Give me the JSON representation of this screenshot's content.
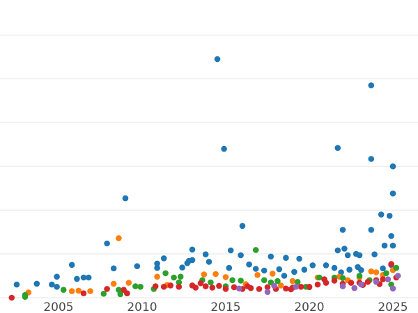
{
  "chart_data": {
    "type": "scatter",
    "title": "",
    "xlabel": "",
    "ylabel": "",
    "xlim": [
      2001.5,
      2026.5
    ],
    "ylim": [
      0,
      68
    ],
    "x_ticks": [
      {
        "value": 2005,
        "label": "2005"
      },
      {
        "value": 2010,
        "label": "2010"
      },
      {
        "value": 2015,
        "label": "2015"
      },
      {
        "value": 2020,
        "label": "2020"
      },
      {
        "value": 2025,
        "label": "2025"
      }
    ],
    "y_gridlines": [
      0,
      10,
      20,
      30,
      40,
      50,
      60
    ],
    "y_tick_labels_shown": false,
    "grid": "horizontal",
    "legend": "none",
    "colors": {
      "blue": "#1f77b4",
      "orange": "#ff7f0e",
      "green": "#2ca02c",
      "red": "#d62728",
      "purple": "#9467bd",
      "grid": "#e6e6e6",
      "tick_text": "#4a4a4a"
    },
    "series": [
      {
        "color": "blue",
        "points": [
          [
            2002.5,
            3.0
          ],
          [
            2003.7,
            3.2
          ],
          [
            2004.6,
            3.0
          ],
          [
            2004.9,
            2.5
          ],
          [
            2004.9,
            4.8
          ],
          [
            2005.8,
            7.5
          ],
          [
            2006.1,
            4.3
          ],
          [
            2006.5,
            4.6
          ],
          [
            2006.8,
            4.6
          ],
          [
            2007.9,
            12.4
          ],
          [
            2008.3,
            6.7
          ],
          [
            2009.0,
            22.7
          ],
          [
            2009.7,
            7.2
          ],
          [
            2010.9,
            6.8
          ],
          [
            2010.9,
            7.8
          ],
          [
            2011.3,
            9.0
          ],
          [
            2012.4,
            6.9
          ],
          [
            2012.7,
            7.9
          ],
          [
            2012.8,
            8.4
          ],
          [
            2013.0,
            11.0
          ],
          [
            2013.0,
            8.6
          ],
          [
            2013.8,
            9.9
          ],
          [
            2014.0,
            8.2
          ],
          [
            2014.5,
            54.5
          ],
          [
            2015.2,
            6.8
          ],
          [
            2014.9,
            34.0
          ],
          [
            2015.3,
            10.8
          ],
          [
            2015.9,
            9.7
          ],
          [
            2016.0,
            16.4
          ],
          [
            2016.4,
            7.6
          ],
          [
            2016.8,
            6.6
          ],
          [
            2017.7,
            9.4
          ],
          [
            2018.2,
            6.5
          ],
          [
            2018.6,
            9.1
          ],
          [
            2019.1,
            5.9
          ],
          [
            2019.4,
            8.9
          ],
          [
            2019.7,
            6.4
          ],
          [
            2020.2,
            7.4
          ],
          [
            2021.0,
            7.4
          ],
          [
            2021.5,
            6.8
          ],
          [
            2021.7,
            34.2
          ],
          [
            2021.7,
            10.8
          ],
          [
            2022.0,
            15.5
          ],
          [
            2022.1,
            11.2
          ],
          [
            2022.3,
            9.7
          ],
          [
            2022.4,
            6.4
          ],
          [
            2022.8,
            10.0
          ],
          [
            2023.0,
            9.7
          ],
          [
            2023.1,
            6.3
          ],
          [
            2023.7,
            48.5
          ],
          [
            2023.7,
            31.7
          ],
          [
            2023.7,
            15.5
          ],
          [
            2023.9,
            9.9
          ],
          [
            2024.3,
            19.0
          ],
          [
            2024.4,
            6.7
          ],
          [
            2024.5,
            11.9
          ],
          [
            2024.8,
            18.7
          ],
          [
            2024.9,
            14.1
          ],
          [
            2025.0,
            30.0
          ],
          [
            2025.0,
            23.8
          ],
          [
            2025.0,
            11.9
          ],
          [
            2024.9,
            7.5
          ],
          [
            2022.9,
            7.0
          ],
          [
            2021.9,
            5.8
          ],
          [
            2017.3,
            6.2
          ],
          [
            2018.5,
            5.0
          ]
        ]
      },
      {
        "color": "orange",
        "points": [
          [
            2003.2,
            1.2
          ],
          [
            2005.8,
            1.5
          ],
          [
            2006.2,
            1.6
          ],
          [
            2006.9,
            1.5
          ],
          [
            2008.3,
            3.2
          ],
          [
            2008.6,
            13.6
          ],
          [
            2009.2,
            3.4
          ],
          [
            2010.9,
            4.8
          ],
          [
            2011.5,
            2.9
          ],
          [
            2013.7,
            5.3
          ],
          [
            2014.4,
            5.4
          ],
          [
            2015.0,
            4.7
          ],
          [
            2016.2,
            3.1
          ],
          [
            2016.9,
            5.2
          ],
          [
            2017.8,
            5.5
          ],
          [
            2019.0,
            3.8
          ],
          [
            2020.5,
            4.6
          ],
          [
            2021.8,
            4.8
          ],
          [
            2023.0,
            4.6
          ],
          [
            2023.7,
            6.0
          ],
          [
            2024.0,
            5.8
          ],
          [
            2024.4,
            5.2
          ],
          [
            2025.0,
            6.3
          ],
          [
            2025.2,
            4.6
          ],
          [
            2022.3,
            4.0
          ],
          [
            2018.3,
            2.8
          ]
        ]
      },
      {
        "color": "green",
        "points": [
          [
            2003.0,
            0.6
          ],
          [
            2003.0,
            0.2
          ],
          [
            2005.3,
            1.8
          ],
          [
            2007.7,
            0.9
          ],
          [
            2008.6,
            1.8
          ],
          [
            2008.7,
            0.8
          ],
          [
            2009.1,
            1.0
          ],
          [
            2009.6,
            2.6
          ],
          [
            2009.9,
            2.5
          ],
          [
            2010.7,
            2.0
          ],
          [
            2011.4,
            5.6
          ],
          [
            2011.9,
            4.6
          ],
          [
            2012.3,
            4.8
          ],
          [
            2012.2,
            3.5
          ],
          [
            2013.6,
            4.0
          ],
          [
            2014.1,
            3.5
          ],
          [
            2015.4,
            4.0
          ],
          [
            2015.9,
            3.9
          ],
          [
            2016.8,
            10.9
          ],
          [
            2017.3,
            4.0
          ],
          [
            2017.7,
            3.5
          ],
          [
            2018.1,
            3.8
          ],
          [
            2019.3,
            3.6
          ],
          [
            2020.0,
            2.4
          ],
          [
            2020.6,
            4.6
          ],
          [
            2021.5,
            4.6
          ],
          [
            2022.0,
            4.5
          ],
          [
            2023.0,
            5.0
          ],
          [
            2023.6,
            4.0
          ],
          [
            2024.6,
            5.6
          ],
          [
            2025.2,
            6.8
          ],
          [
            2024.9,
            3.0
          ],
          [
            2015.0,
            2.6
          ],
          [
            2019.8,
            2.5
          ]
        ]
      },
      {
        "color": "red",
        "points": [
          [
            2002.2,
            0.0
          ],
          [
            2006.5,
            1.0
          ],
          [
            2007.9,
            2.0
          ],
          [
            2008.9,
            1.8
          ],
          [
            2009.1,
            1.0
          ],
          [
            2010.8,
            2.6
          ],
          [
            2011.3,
            2.5
          ],
          [
            2011.7,
            2.8
          ],
          [
            2012.2,
            2.5
          ],
          [
            2013.0,
            2.8
          ],
          [
            2013.5,
            3.3
          ],
          [
            2013.8,
            2.6
          ],
          [
            2014.2,
            2.3
          ],
          [
            2014.6,
            2.7
          ],
          [
            2015.0,
            2.0
          ],
          [
            2015.5,
            2.4
          ],
          [
            2016.0,
            2.0
          ],
          [
            2016.5,
            2.2
          ],
          [
            2017.0,
            2.0
          ],
          [
            2017.5,
            2.4
          ],
          [
            2018.0,
            2.0
          ],
          [
            2018.6,
            2.1
          ],
          [
            2019.0,
            2.3
          ],
          [
            2019.5,
            2.5
          ],
          [
            2020.0,
            2.5
          ],
          [
            2020.5,
            3.0
          ],
          [
            2021.0,
            3.4
          ],
          [
            2021.5,
            3.9
          ],
          [
            2022.0,
            3.2
          ],
          [
            2022.5,
            3.4
          ],
          [
            2023.0,
            3.4
          ],
          [
            2023.5,
            3.6
          ],
          [
            2024.0,
            4.0
          ],
          [
            2024.4,
            4.2
          ],
          [
            2024.9,
            7.7
          ],
          [
            2025.2,
            4.6
          ],
          [
            2013.2,
            2.3
          ],
          [
            2016.3,
            2.6
          ],
          [
            2018.9,
            1.9
          ],
          [
            2020.9,
            4.2
          ],
          [
            2023.2,
            2.9
          ],
          [
            2024.2,
            3.1
          ]
        ]
      },
      {
        "color": "purple",
        "points": [
          [
            2015.8,
            2.1
          ],
          [
            2017.5,
            1.3
          ],
          [
            2017.9,
            2.7
          ],
          [
            2019.2,
            2.5
          ],
          [
            2022.0,
            2.6
          ],
          [
            2022.7,
            2.2
          ],
          [
            2023.1,
            3.0
          ],
          [
            2024.0,
            3.6
          ],
          [
            2025.0,
            2.1
          ],
          [
            2025.3,
            5.0
          ],
          [
            2024.7,
            4.2
          ]
        ]
      }
    ]
  }
}
